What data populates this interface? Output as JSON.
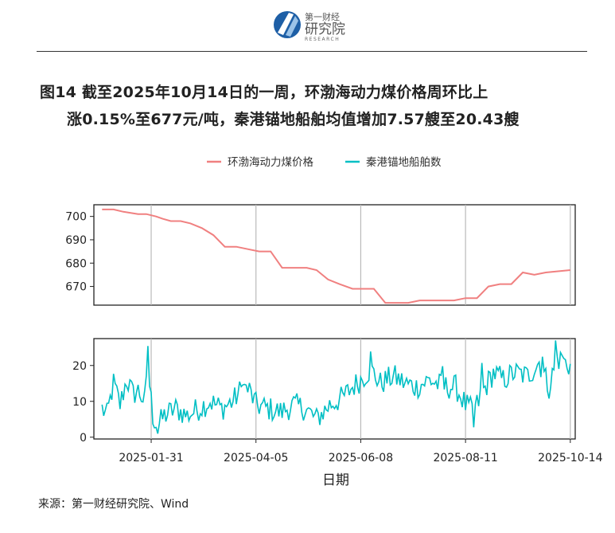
{
  "logo": {
    "brand_text": "第一财经",
    "name_text": "研究院",
    "sub_text": "RESEARCH"
  },
  "title": {
    "line1": "图14  截至2025年10月14日的一周，环渤海动力煤价格周环比上",
    "line2": "涨0.15%至677元/吨，秦港锚地船舶均值增加7.57艘至20.43艘"
  },
  "source": "来源：第一财经研究院、Wind",
  "colors": {
    "price": "#F08080",
    "ships": "#00BFC4"
  },
  "chart_data": [
    {
      "type": "line",
      "panel": "top",
      "series": [
        {
          "name": "环渤海动力煤价格",
          "x": [
            "2025-01-01",
            "2025-01-06",
            "2025-01-08",
            "2025-01-14",
            "2025-01-23",
            "2025-01-28",
            "2025-02-03",
            "2025-02-07",
            "2025-02-12",
            "2025-02-18",
            "2025-02-24",
            "2025-03-03",
            "2025-03-10",
            "2025-03-17",
            "2025-03-24",
            "2025-03-31",
            "2025-04-07",
            "2025-04-14",
            "2025-04-21",
            "2025-04-28",
            "2025-05-06",
            "2025-05-12",
            "2025-05-19",
            "2025-05-26",
            "2025-06-03",
            "2025-06-09",
            "2025-06-16",
            "2025-06-23",
            "2025-06-30",
            "2025-07-07",
            "2025-07-14",
            "2025-07-21",
            "2025-07-28",
            "2025-08-04",
            "2025-08-11",
            "2025-08-15",
            "2025-08-18",
            "2025-08-25",
            "2025-09-01",
            "2025-09-05",
            "2025-09-08",
            "2025-09-15",
            "2025-09-22",
            "2025-09-29",
            "2025-10-14"
          ],
          "values": [
            703,
            703,
            703,
            702,
            701,
            701,
            700,
            699,
            698,
            698,
            697,
            695,
            692,
            687,
            687,
            686,
            685,
            685,
            678,
            678,
            678,
            677,
            673,
            671,
            669,
            669,
            669,
            663,
            663,
            663,
            664,
            664,
            664,
            664,
            665,
            665,
            665,
            670,
            671,
            671,
            671,
            676,
            675,
            676,
            677
          ]
        }
      ],
      "ylim": [
        662,
        705
      ],
      "yticks": [
        670,
        680,
        690,
        700
      ]
    },
    {
      "type": "line",
      "panel": "bottom",
      "series": [
        {
          "name": "秦港锚地船舶数"
        }
      ],
      "ylim": [
        -0.5,
        27.5
      ],
      "yticks": [
        0,
        10,
        20
      ],
      "x_range": [
        "2024-12-27",
        "2025-10-17"
      ],
      "xticks": [
        "2025-01-31",
        "2025-04-05",
        "2025-06-08",
        "2025-08-11",
        "2025-10-14"
      ],
      "xlabel": "日期",
      "legend_position": "top",
      "grid": "vertical",
      "note": "daily series, 2025-01-01 to 2025-10-14"
    }
  ]
}
